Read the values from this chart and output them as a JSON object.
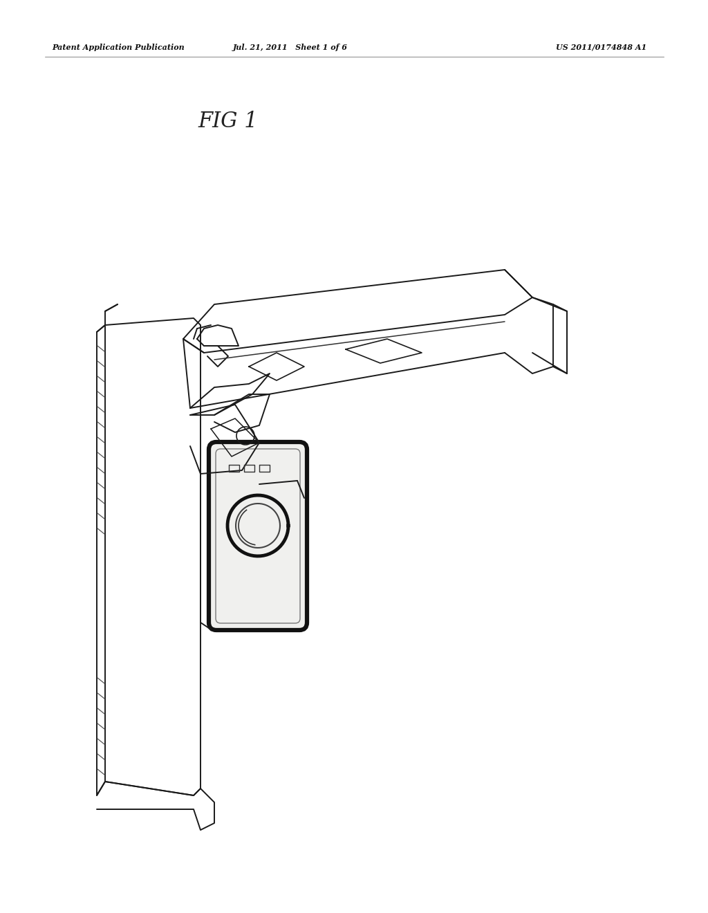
{
  "page_width": 10.24,
  "page_height": 13.2,
  "bg_color": "#ffffff",
  "header_text_left": "Patent Application Publication",
  "header_text_mid": "Jul. 21, 2011   Sheet 1 of 6",
  "header_text_right": "US 2011/0174848 A1",
  "fig_label": "FIG 1",
  "line_color": "#1a1a1a",
  "line_width": 1.4
}
